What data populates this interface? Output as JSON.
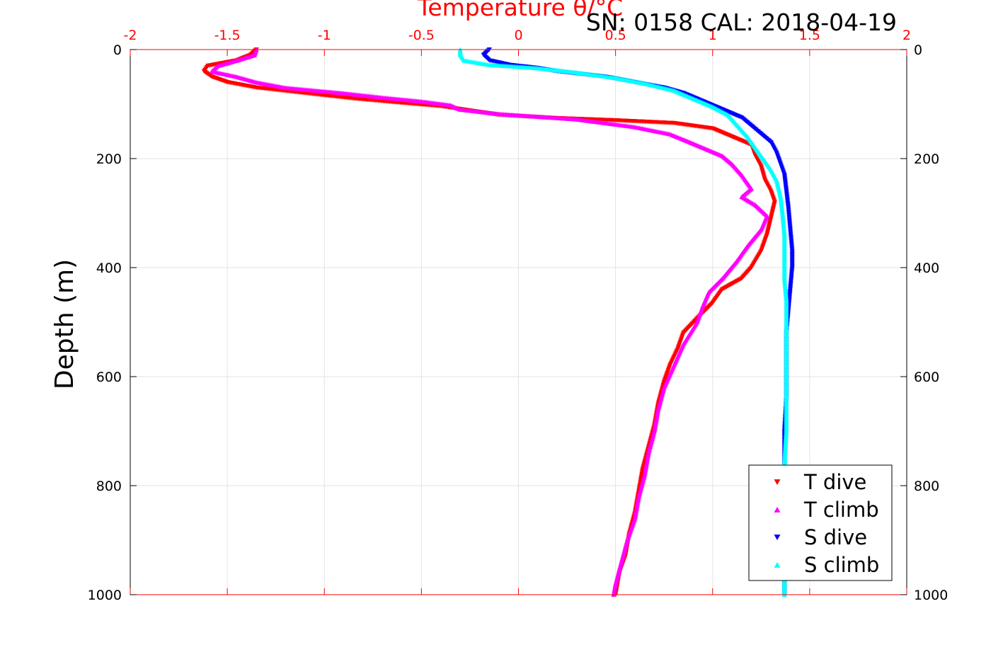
{
  "chart_data": {
    "type": "scatter",
    "title": "Temperature θ/°C",
    "annotation": "SN: 0158  CAL: 2018-04-19",
    "ylabel": "Depth (m)",
    "xlim": [
      -2,
      2
    ],
    "ylim": [
      0,
      1000
    ],
    "y_reversed": true,
    "x_ticks": [
      -2,
      -1.5,
      -1,
      -0.5,
      0,
      0.5,
      1,
      1.5,
      2
    ],
    "x_tick_labels": [
      "-2",
      "-1.5",
      "-1",
      "-0.5",
      "0",
      "0.5",
      "1",
      "1.5",
      "2"
    ],
    "y_ticks": [
      0,
      200,
      400,
      600,
      800,
      1000
    ],
    "y_tick_labels": [
      "0",
      "200",
      "400",
      "600",
      "800",
      "1000"
    ],
    "grid": true,
    "legend_position": "bottom-right",
    "colors": {
      "axis_x": "#ff0000",
      "grid": "#e3e3e3",
      "frame": "#000000"
    },
    "series": [
      {
        "name": "T dive",
        "marker": "triangle-down",
        "color": "#ff0000",
        "points": [
          [
            -1.35,
            0
          ],
          [
            -1.38,
            10
          ],
          [
            -1.45,
            20
          ],
          [
            -1.6,
            30
          ],
          [
            -1.62,
            40
          ],
          [
            -1.58,
            50
          ],
          [
            -1.5,
            60
          ],
          [
            -1.35,
            70
          ],
          [
            -1.1,
            80
          ],
          [
            -0.85,
            90
          ],
          [
            -0.6,
            98
          ],
          [
            -0.4,
            104
          ],
          [
            -0.25,
            112
          ],
          [
            -0.1,
            120
          ],
          [
            0.2,
            126
          ],
          [
            0.5,
            130
          ],
          [
            0.8,
            135
          ],
          [
            1.0,
            145
          ],
          [
            1.1,
            160
          ],
          [
            1.2,
            175
          ],
          [
            1.22,
            195
          ],
          [
            1.25,
            215
          ],
          [
            1.27,
            240
          ],
          [
            1.3,
            260
          ],
          [
            1.32,
            280
          ],
          [
            1.3,
            310
          ],
          [
            1.28,
            340
          ],
          [
            1.25,
            370
          ],
          [
            1.2,
            400
          ],
          [
            1.15,
            420
          ],
          [
            1.05,
            440
          ],
          [
            1.0,
            465
          ],
          [
            0.93,
            490
          ],
          [
            0.85,
            520
          ],
          [
            0.82,
            550
          ],
          [
            0.78,
            580
          ],
          [
            0.75,
            610
          ],
          [
            0.72,
            650
          ],
          [
            0.7,
            690
          ],
          [
            0.67,
            730
          ],
          [
            0.64,
            770
          ],
          [
            0.62,
            810
          ],
          [
            0.6,
            850
          ],
          [
            0.57,
            890
          ],
          [
            0.55,
            930
          ],
          [
            0.52,
            960
          ],
          [
            0.5,
            1000
          ]
        ]
      },
      {
        "name": "T climb",
        "marker": "triangle-up",
        "color": "#ff00ff",
        "points": [
          [
            -1.35,
            0
          ],
          [
            -1.36,
            10
          ],
          [
            -1.45,
            20
          ],
          [
            -1.55,
            30
          ],
          [
            -1.58,
            40
          ],
          [
            -1.45,
            50
          ],
          [
            -1.35,
            60
          ],
          [
            -1.2,
            70
          ],
          [
            -0.9,
            80
          ],
          [
            -0.7,
            88
          ],
          [
            -0.5,
            95
          ],
          [
            -0.35,
            102
          ],
          [
            -0.3,
            110
          ],
          [
            -0.1,
            118
          ],
          [
            0.3,
            128
          ],
          [
            0.6,
            142
          ],
          [
            0.78,
            155
          ],
          [
            0.85,
            165
          ],
          [
            0.95,
            180
          ],
          [
            1.05,
            195
          ],
          [
            1.1,
            210
          ],
          [
            1.15,
            230
          ],
          [
            1.2,
            255
          ],
          [
            1.15,
            270
          ],
          [
            1.22,
            285
          ],
          [
            1.28,
            305
          ],
          [
            1.25,
            330
          ],
          [
            1.18,
            360
          ],
          [
            1.12,
            390
          ],
          [
            1.05,
            420
          ],
          [
            0.98,
            445
          ],
          [
            0.95,
            470
          ],
          [
            0.92,
            500
          ],
          [
            0.85,
            540
          ],
          [
            0.8,
            580
          ],
          [
            0.75,
            620
          ],
          [
            0.72,
            660
          ],
          [
            0.7,
            700
          ],
          [
            0.67,
            740
          ],
          [
            0.65,
            780
          ],
          [
            0.62,
            820
          ],
          [
            0.6,
            860
          ],
          [
            0.56,
            900
          ],
          [
            0.53,
            940
          ],
          [
            0.5,
            980
          ],
          [
            0.49,
            1000
          ]
        ]
      },
      {
        "name": "S dive",
        "marker": "triangle-down",
        "color": "#0000ff",
        "points": [
          [
            -0.15,
            0
          ],
          [
            -0.18,
            10
          ],
          [
            -0.15,
            20
          ],
          [
            -0.05,
            28
          ],
          [
            0.1,
            34
          ],
          [
            0.2,
            40
          ],
          [
            0.45,
            50
          ],
          [
            0.6,
            60
          ],
          [
            0.75,
            70
          ],
          [
            0.85,
            80
          ],
          [
            0.95,
            95
          ],
          [
            1.05,
            110
          ],
          [
            1.15,
            125
          ],
          [
            1.2,
            140
          ],
          [
            1.25,
            155
          ],
          [
            1.3,
            170
          ],
          [
            1.33,
            190
          ],
          [
            1.35,
            210
          ],
          [
            1.37,
            230
          ],
          [
            1.38,
            260
          ],
          [
            1.39,
            290
          ],
          [
            1.4,
            330
          ],
          [
            1.41,
            370
          ],
          [
            1.41,
            400
          ],
          [
            1.4,
            440
          ],
          [
            1.39,
            480
          ],
          [
            1.38,
            520
          ],
          [
            1.38,
            580
          ],
          [
            1.38,
            640
          ],
          [
            1.37,
            700
          ],
          [
            1.37,
            760
          ],
          [
            1.37,
            820
          ],
          [
            1.37,
            880
          ],
          [
            1.37,
            940
          ],
          [
            1.37,
            1000
          ]
        ]
      },
      {
        "name": "S climb",
        "marker": "triangle-up",
        "color": "#00ffff",
        "points": [
          [
            -0.3,
            0
          ],
          [
            -0.3,
            10
          ],
          [
            -0.28,
            20
          ],
          [
            -0.15,
            28
          ],
          [
            0.1,
            34
          ],
          [
            0.3,
            42
          ],
          [
            0.5,
            52
          ],
          [
            0.65,
            62
          ],
          [
            0.8,
            75
          ],
          [
            0.9,
            90
          ],
          [
            1.0,
            105
          ],
          [
            1.08,
            120
          ],
          [
            1.13,
            140
          ],
          [
            1.18,
            160
          ],
          [
            1.22,
            180
          ],
          [
            1.26,
            200
          ],
          [
            1.3,
            220
          ],
          [
            1.33,
            240
          ],
          [
            1.35,
            270
          ],
          [
            1.36,
            300
          ],
          [
            1.37,
            340
          ],
          [
            1.37,
            380
          ],
          [
            1.37,
            420
          ],
          [
            1.38,
            460
          ],
          [
            1.38,
            520
          ],
          [
            1.38,
            580
          ],
          [
            1.38,
            640
          ],
          [
            1.38,
            700
          ],
          [
            1.37,
            760
          ],
          [
            1.37,
            820
          ],
          [
            1.37,
            880
          ],
          [
            1.37,
            940
          ],
          [
            1.37,
            1000
          ]
        ]
      }
    ]
  }
}
